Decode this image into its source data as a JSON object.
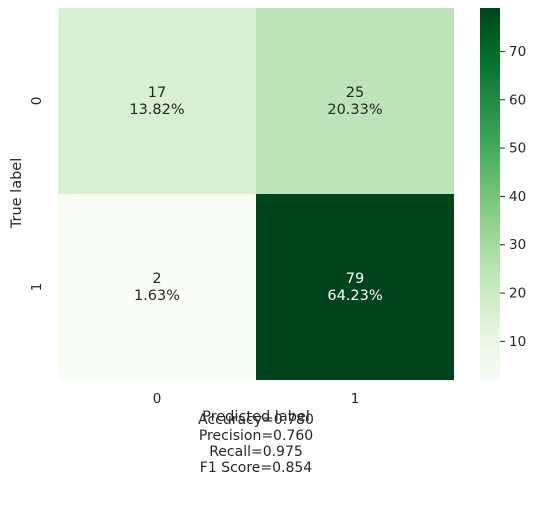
{
  "chart_data": {
    "type": "heatmap",
    "xlabel": "Predicted label",
    "ylabel": "True label",
    "x_categories": [
      "0",
      "1"
    ],
    "y_categories": [
      "0",
      "1"
    ],
    "cells": [
      {
        "row": 0,
        "col": 0,
        "count": "17",
        "percent": "13.82%",
        "value": 17
      },
      {
        "row": 0,
        "col": 1,
        "count": "25",
        "percent": "20.33%",
        "value": 25
      },
      {
        "row": 1,
        "col": 0,
        "count": "2",
        "percent": "1.63%",
        "value": 2
      },
      {
        "row": 1,
        "col": 1,
        "count": "79",
        "percent": "64.23%",
        "value": 79
      }
    ],
    "colormap": "Greens",
    "colorbar": {
      "min": 2,
      "max": 79,
      "ticks": [
        10,
        20,
        30,
        40,
        50,
        60,
        70
      ],
      "tick_labels": [
        "10",
        "20",
        "30",
        "40",
        "50",
        "60",
        "70"
      ]
    },
    "colors": {
      "cell_0_0": "#d9efd3",
      "cell_0_1": "#bde4b8",
      "cell_1_0": "#f7fcf5",
      "cell_1_1": "#00441b",
      "text_light": "#ffffff",
      "text_dark": "#262626"
    },
    "metrics": {
      "accuracy": "Accuracy=0.780",
      "precision": "Precision=0.760",
      "recall": "Recall=0.975",
      "f1": "F1 Score=0.854"
    }
  }
}
